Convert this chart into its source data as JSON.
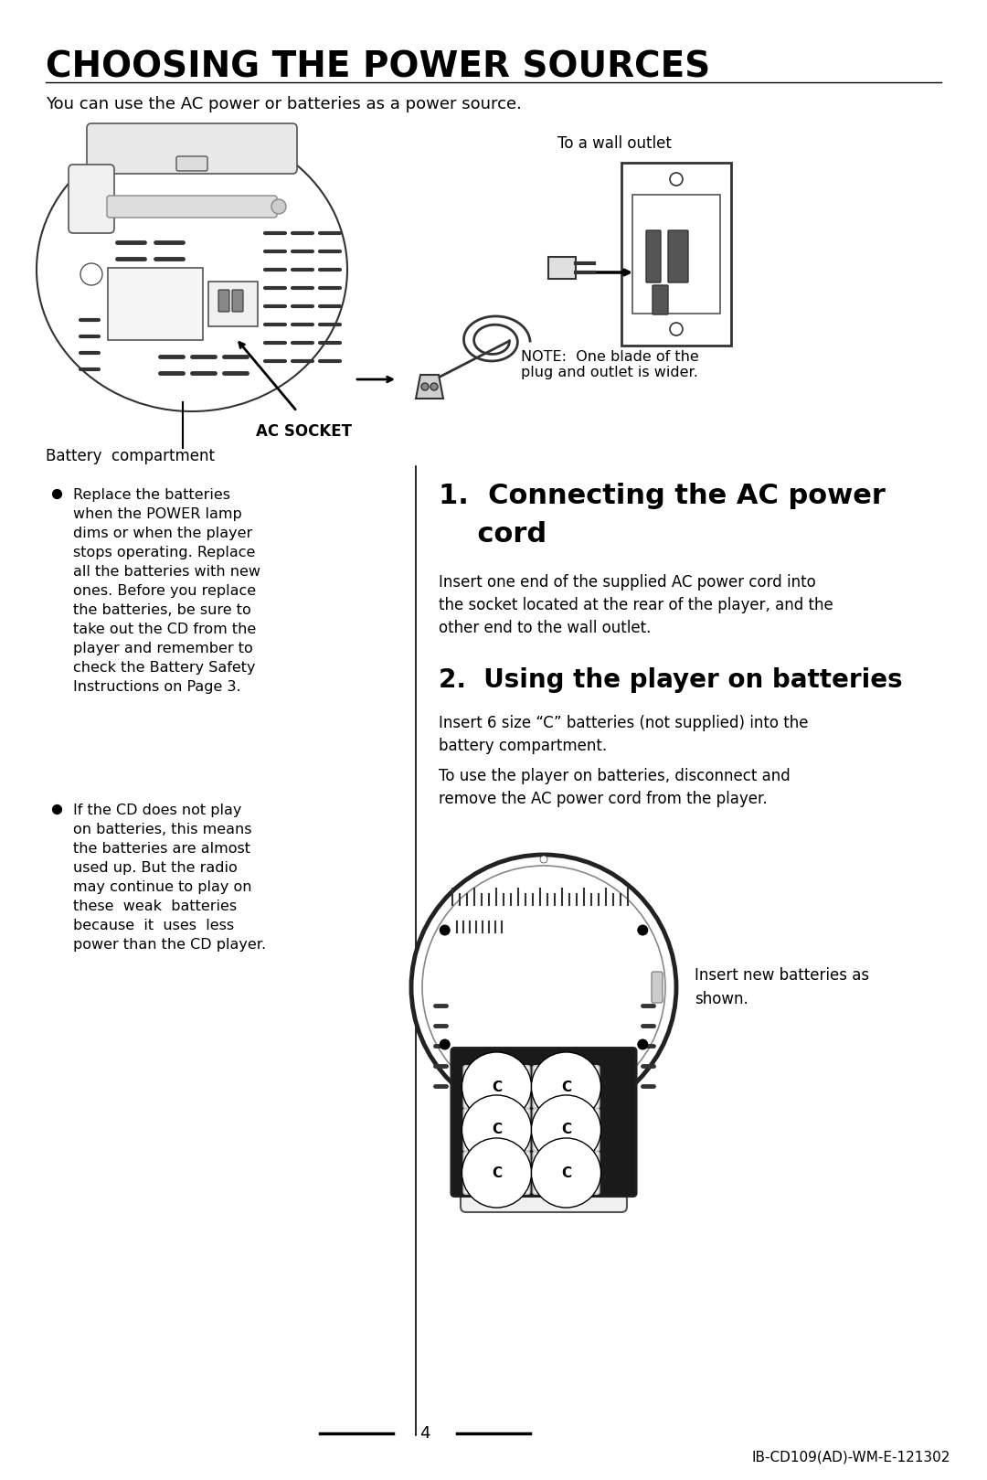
{
  "bg_color": "#ffffff",
  "title": "CHOOSING THE POWER SOURCES",
  "subtitle": "You can use the AC power or batteries as a power source.",
  "section1_title_line1": "1.  Connecting the AC power",
  "section1_title_line2": "    cord",
  "section1_body": "Insert one end of the supplied AC power cord into\nthe socket located at the rear of the player, and the\nother end to the wall outlet.",
  "section2_title": "2.  Using the player on batteries",
  "section2_body1": "Insert 6 size “C” batteries (not supplied) into the\nbattery compartment.",
  "section2_body2": "To use the player on batteries, disconnect and\nremove the AC power cord from the player.",
  "insert_text": "Insert new batteries as\nshown.",
  "bullet1": "Replace the batteries\nwhen the POWER lamp\ndims or when the player\nstops operating. Replace\nall the batteries with new\nones. Before you replace\nthe batteries, be sure to\ntake out the CD from the\nplayer and remember to\ncheck the Battery Safety\nInstructions on Page 3.",
  "bullet2": "If the CD does not play\non batteries, this means\nthe batteries are almost\nused up. But the radio\nmay continue to play on\nthese  weak  batteries\nbecause  it  uses  less\npower than the CD player.",
  "label_battery": "Battery  compartment",
  "label_ac_socket": "AC SOCKET",
  "label_wall": "To a wall outlet",
  "label_note": "NOTE:  One blade of the\nplug and outlet is wider.",
  "page_number": "4",
  "footer": "IB-CD109(AD)-WM-E-121302",
  "text_color": "#000000"
}
